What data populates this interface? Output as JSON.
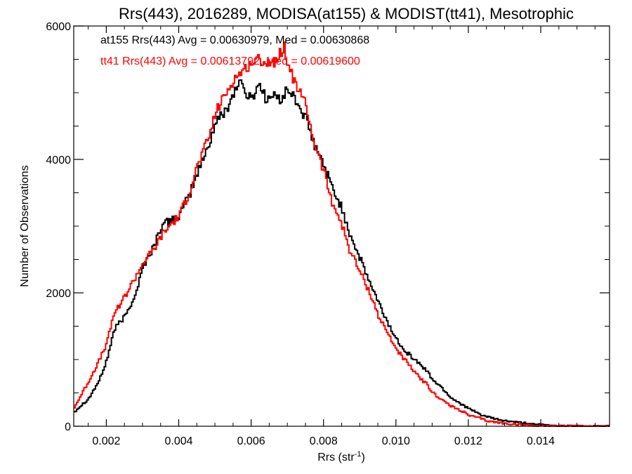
{
  "chart_data": {
    "type": "line",
    "title": "Rrs(443), 2016289, MODISA(at155) & MODIST(tt41), Mesotrophic",
    "xlabel": "Rrs (str",
    "xlabel_sup": "-1",
    "xlabel_close": ")",
    "ylabel": "Number of Observations",
    "xlim": [
      0.0011,
      0.0159
    ],
    "ylim": [
      0,
      6000
    ],
    "xticks": [
      "0.002",
      "0.004",
      "0.006",
      "0.008",
      "0.010",
      "0.012",
      "0.014"
    ],
    "xtick_values": [
      0.002,
      0.004,
      0.006,
      0.008,
      0.01,
      0.012,
      0.014
    ],
    "yticks": [
      "0",
      "2000",
      "4000",
      "6000"
    ],
    "ytick_values": [
      0,
      2000,
      4000,
      6000
    ],
    "grid": false,
    "legend_placement": "top-left",
    "annotations": [
      "at155 Rrs(443) Avg = 0.00630979, Med = 0.00630868",
      "tt41 Rrs(443) Avg = 0.00613792, Med = 0.00619600"
    ],
    "series": [
      {
        "color": "#000000",
        "x": [
          0.0011,
          0.0015,
          0.0018,
          0.002,
          0.0022,
          0.0025,
          0.0028,
          0.003,
          0.0033,
          0.0035,
          0.0038,
          0.004,
          0.0043,
          0.0045,
          0.0048,
          0.005,
          0.0053,
          0.0055,
          0.0057,
          0.0058,
          0.006,
          0.0062,
          0.0064,
          0.0066,
          0.0068,
          0.007,
          0.0072,
          0.0075,
          0.0077,
          0.008,
          0.0082,
          0.0085,
          0.0087,
          0.009,
          0.0093,
          0.0095,
          0.0098,
          0.01,
          0.0103,
          0.0105,
          0.0108,
          0.011,
          0.0113,
          0.0115,
          0.0118,
          0.012,
          0.0123,
          0.0125,
          0.0128,
          0.013,
          0.0133,
          0.0135,
          0.0138,
          0.014,
          0.0143,
          0.0145,
          0.015,
          0.0159
        ],
        "values": [
          220,
          420,
          700,
          1000,
          1450,
          1650,
          2000,
          2400,
          2700,
          3000,
          3100,
          3150,
          3500,
          3800,
          4200,
          4550,
          4750,
          5000,
          5200,
          5000,
          4900,
          5150,
          4900,
          4950,
          4900,
          5050,
          4900,
          4600,
          4250,
          3900,
          3600,
          3250,
          2900,
          2500,
          2100,
          1850,
          1500,
          1300,
          1100,
          1000,
          850,
          700,
          550,
          430,
          330,
          260,
          180,
          140,
          100,
          80,
          60,
          50,
          30,
          20,
          10,
          6,
          3,
          2
        ]
      },
      {
        "color": "#ff0000",
        "x": [
          0.0011,
          0.0015,
          0.0018,
          0.002,
          0.0022,
          0.0025,
          0.0028,
          0.003,
          0.0033,
          0.0035,
          0.0038,
          0.004,
          0.0043,
          0.0045,
          0.0048,
          0.005,
          0.0053,
          0.0055,
          0.0057,
          0.0058,
          0.006,
          0.0062,
          0.0064,
          0.0066,
          0.0068,
          0.0069,
          0.007,
          0.0072,
          0.0075,
          0.0077,
          0.008,
          0.0082,
          0.0085,
          0.0087,
          0.009,
          0.0093,
          0.0095,
          0.0098,
          0.01,
          0.0103,
          0.0105,
          0.0108,
          0.011,
          0.0113,
          0.0115,
          0.0118,
          0.012,
          0.0123,
          0.0125,
          0.0128,
          0.013,
          0.0133,
          0.0135,
          0.0138,
          0.014,
          0.0145,
          0.015,
          0.0159
        ],
        "values": [
          280,
          680,
          1000,
          1250,
          1700,
          1950,
          2250,
          2450,
          2650,
          2850,
          3050,
          3150,
          3550,
          3900,
          4300,
          4700,
          5000,
          5200,
          5300,
          5350,
          5450,
          5500,
          5450,
          5450,
          5600,
          5700,
          5400,
          5150,
          4800,
          4300,
          3800,
          3400,
          3000,
          2650,
          2300,
          1950,
          1650,
          1350,
          1150,
          950,
          800,
          650,
          500,
          380,
          300,
          230,
          160,
          120,
          80,
          55,
          40,
          30,
          20,
          12,
          8,
          4,
          2,
          1
        ]
      }
    ]
  }
}
